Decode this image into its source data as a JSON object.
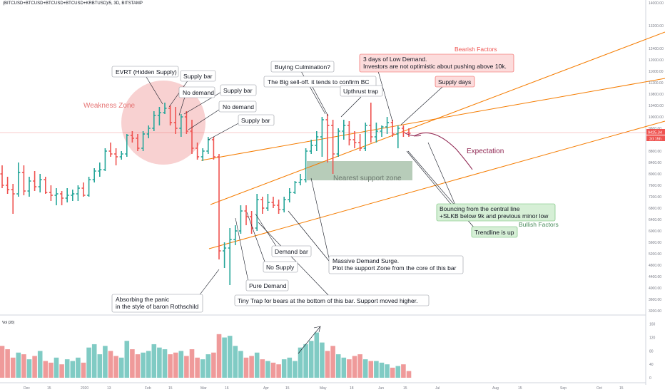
{
  "header": {
    "symbol_title": "(BITCUSD+BTCUSD+BTCUSD+BTCUSD+KRBTUSD)/5, 3D, BITSTAMP"
  },
  "volume_panel": {
    "label": "Vol (20)"
  },
  "colors": {
    "up": "#26a69a",
    "down": "#ef5350",
    "volume_up": "#80cbc4",
    "volume_down": "#ef9a9a",
    "channel": "#f57c00",
    "weakness_zone": "#ef9a9a",
    "support_zone": "#a5bfa8"
  },
  "price_axis": {
    "labels": [
      "14000.00",
      "13200.00",
      "12400.00",
      "12000.00",
      "11600.00",
      "11200.00",
      "10800.00",
      "10400.00",
      "10000.00",
      "9600.00",
      "8800.00",
      "8400.00",
      "8000.00",
      "7600.00",
      "7200.00",
      "6800.00",
      "6400.00",
      "6000.00",
      "5600.00",
      "5200.00",
      "4800.00",
      "4400.00",
      "4000.00",
      "3600.00",
      "3200.00"
    ],
    "last_price": "9425.34",
    "countdown": "2d 15h"
  },
  "volume_axis": {
    "labels": [
      "160",
      "120",
      "80",
      "40",
      "0"
    ]
  },
  "time_axis": {
    "labels": [
      "Dec",
      "15",
      "2020",
      "13",
      "Feb",
      "15",
      "Mar",
      "16",
      "Apr",
      "15",
      "May",
      "18",
      "Jun",
      "15",
      "Jul",
      "Aug",
      "15",
      "Sep",
      "Oct",
      "15"
    ]
  },
  "zones": {
    "weakness": "Weakness Zone",
    "support": "Nearest support zone"
  },
  "annotations": {
    "evrt": "EVRT (Hidden Supply)",
    "supply_bar_1": "Supply bar",
    "no_demand_1": "No demand",
    "supply_bar_2": "Supply bar",
    "no_demand_2": "No demand",
    "supply_bar_3": "Supply bar",
    "buying_climax": "Buying Culmination?",
    "big_selloff": "The Big sell-off. it tends to confirm BC",
    "upthrust": "Upthrust trap",
    "low_demand_1": "3 days of Low Demand.",
    "low_demand_2": "Investors are not optimistic about pushing above 10k.",
    "supply_days": "Supply days",
    "bearish_factors": "Bearish Factors",
    "expectation": "Expectation",
    "bouncing_1": "Bouncing from the central line",
    "bouncing_2": "+SLKB below 9k and previous minor low",
    "trendline_up": "Trendline is up",
    "bullish_factors": "Bullish Factors",
    "demand_bar": "Demand bar",
    "no_supply": "No Supply",
    "pure_demand": "Pure Demand",
    "massive_1": "Massive Demand Surge.",
    "massive_2": "Plot the support Zone from the core of this bar",
    "absorbing_1": "Absorbing the panic",
    "absorbing_2": "in the style of baron Rothschild",
    "tiny_trap": "Tiny Trap for bears at the bottom of this bar. Support moved higher."
  },
  "chart_data": {
    "type": "ohlc",
    "timeframe": "3D",
    "y_scale": "linear",
    "ylim": [
      3200,
      14000
    ],
    "last_price": 9425.34,
    "bars": [
      {
        "o": 8000,
        "h": 8300,
        "l": 7500,
        "c": 7600
      },
      {
        "o": 7600,
        "h": 7900,
        "l": 7300,
        "c": 7450
      },
      {
        "o": 7450,
        "h": 7650,
        "l": 6600,
        "c": 7300
      },
      {
        "o": 7300,
        "h": 8400,
        "l": 7200,
        "c": 8050
      },
      {
        "o": 8050,
        "h": 8300,
        "l": 7250,
        "c": 7400
      },
      {
        "o": 7400,
        "h": 7900,
        "l": 7200,
        "c": 7750
      },
      {
        "o": 7750,
        "h": 8100,
        "l": 7400,
        "c": 7550
      },
      {
        "o": 7550,
        "h": 8000,
        "l": 7350,
        "c": 7800
      },
      {
        "o": 7800,
        "h": 7900,
        "l": 7300,
        "c": 7350
      },
      {
        "o": 7350,
        "h": 7600,
        "l": 7050,
        "c": 7250
      },
      {
        "o": 7250,
        "h": 7500,
        "l": 6900,
        "c": 7300
      },
      {
        "o": 7300,
        "h": 7400,
        "l": 6900,
        "c": 7150
      },
      {
        "o": 7150,
        "h": 7500,
        "l": 7000,
        "c": 7250
      },
      {
        "o": 7250,
        "h": 7450,
        "l": 7050,
        "c": 7300
      },
      {
        "o": 7300,
        "h": 7600,
        "l": 7050,
        "c": 7500
      },
      {
        "o": 7500,
        "h": 7700,
        "l": 7200,
        "c": 7250
      },
      {
        "o": 7250,
        "h": 7900,
        "l": 7200,
        "c": 7800
      },
      {
        "o": 7800,
        "h": 8200,
        "l": 7700,
        "c": 8100
      },
      {
        "o": 8100,
        "h": 8400,
        "l": 7900,
        "c": 8150
      },
      {
        "o": 8150,
        "h": 8900,
        "l": 8100,
        "c": 8800
      },
      {
        "o": 8800,
        "h": 9100,
        "l": 8600,
        "c": 8700
      },
      {
        "o": 8700,
        "h": 8900,
        "l": 8300,
        "c": 8600
      },
      {
        "o": 8600,
        "h": 8800,
        "l": 8500,
        "c": 8700
      },
      {
        "o": 8700,
        "h": 9400,
        "l": 8600,
        "c": 9350
      },
      {
        "o": 9350,
        "h": 9500,
        "l": 9100,
        "c": 9250
      },
      {
        "o": 9250,
        "h": 9400,
        "l": 8800,
        "c": 8900
      },
      {
        "o": 8900,
        "h": 9500,
        "l": 8800,
        "c": 9400
      },
      {
        "o": 9400,
        "h": 9700,
        "l": 9250,
        "c": 9600
      },
      {
        "o": 9600,
        "h": 10200,
        "l": 9500,
        "c": 10050
      },
      {
        "o": 10050,
        "h": 10350,
        "l": 9700,
        "c": 10150
      },
      {
        "o": 10150,
        "h": 10500,
        "l": 10100,
        "c": 10300
      },
      {
        "o": 10300,
        "h": 10400,
        "l": 9700,
        "c": 9800
      },
      {
        "o": 9800,
        "h": 10350,
        "l": 9400,
        "c": 9600
      },
      {
        "o": 9600,
        "h": 10100,
        "l": 9300,
        "c": 10000
      },
      {
        "o": 10000,
        "h": 10200,
        "l": 9400,
        "c": 9500
      },
      {
        "o": 9500,
        "h": 9900,
        "l": 8700,
        "c": 8900
      },
      {
        "o": 8900,
        "h": 9100,
        "l": 8500,
        "c": 8600
      },
      {
        "o": 8600,
        "h": 8900,
        "l": 8450,
        "c": 8800
      },
      {
        "o": 8800,
        "h": 9300,
        "l": 8700,
        "c": 9200
      },
      {
        "o": 9200,
        "h": 9300,
        "l": 8500,
        "c": 8600
      },
      {
        "o": 8600,
        "h": 8700,
        "l": 5000,
        "c": 5300
      },
      {
        "o": 5300,
        "h": 5600,
        "l": 4700,
        "c": 5400
      },
      {
        "o": 5400,
        "h": 6100,
        "l": 4100,
        "c": 5700
      },
      {
        "o": 5700,
        "h": 6200,
        "l": 5500,
        "c": 6000
      },
      {
        "o": 6000,
        "h": 6900,
        "l": 5900,
        "c": 6700
      },
      {
        "o": 6700,
        "h": 6900,
        "l": 6200,
        "c": 6500
      },
      {
        "o": 6500,
        "h": 6700,
        "l": 5900,
        "c": 6100
      },
      {
        "o": 6100,
        "h": 7300,
        "l": 6000,
        "c": 7100
      },
      {
        "o": 7100,
        "h": 7200,
        "l": 6600,
        "c": 6800
      },
      {
        "o": 6800,
        "h": 7300,
        "l": 6700,
        "c": 7000
      },
      {
        "o": 7000,
        "h": 7200,
        "l": 6800,
        "c": 6900
      },
      {
        "o": 6900,
        "h": 7100,
        "l": 6600,
        "c": 6750
      },
      {
        "o": 6750,
        "h": 7200,
        "l": 6650,
        "c": 7100
      },
      {
        "o": 7100,
        "h": 7500,
        "l": 7000,
        "c": 7350
      },
      {
        "o": 7350,
        "h": 7750,
        "l": 7300,
        "c": 7700
      },
      {
        "o": 7700,
        "h": 8000,
        "l": 7600,
        "c": 7800
      },
      {
        "o": 7800,
        "h": 8900,
        "l": 7700,
        "c": 8800
      },
      {
        "o": 8800,
        "h": 9200,
        "l": 8700,
        "c": 9000
      },
      {
        "o": 9000,
        "h": 9500,
        "l": 8800,
        "c": 9300
      },
      {
        "o": 9300,
        "h": 10000,
        "l": 8600,
        "c": 9900
      },
      {
        "o": 9900,
        "h": 10100,
        "l": 8400,
        "c": 9700
      },
      {
        "o": 9700,
        "h": 9900,
        "l": 8000,
        "c": 8700
      },
      {
        "o": 8700,
        "h": 9600,
        "l": 8600,
        "c": 9500
      },
      {
        "o": 9500,
        "h": 9900,
        "l": 9200,
        "c": 9700
      },
      {
        "o": 9700,
        "h": 9850,
        "l": 9000,
        "c": 9200
      },
      {
        "o": 9200,
        "h": 9500,
        "l": 8900,
        "c": 9100
      },
      {
        "o": 9100,
        "h": 9400,
        "l": 8800,
        "c": 8900
      },
      {
        "o": 8900,
        "h": 9800,
        "l": 8800,
        "c": 9700
      },
      {
        "o": 9700,
        "h": 10500,
        "l": 9100,
        "c": 9300
      },
      {
        "o": 9300,
        "h": 9800,
        "l": 9100,
        "c": 9500
      },
      {
        "o": 9500,
        "h": 9700,
        "l": 9300,
        "c": 9650
      },
      {
        "o": 9650,
        "h": 10000,
        "l": 9400,
        "c": 9800
      },
      {
        "o": 9800,
        "h": 9900,
        "l": 9300,
        "c": 9400
      },
      {
        "o": 9400,
        "h": 9700,
        "l": 8900,
        "c": 9600
      },
      {
        "o": 9600,
        "h": 9700,
        "l": 9300,
        "c": 9450
      },
      {
        "o": 9450,
        "h": 9600,
        "l": 9300,
        "c": 9425
      }
    ],
    "volume": [
      95,
      85,
      60,
      75,
      70,
      55,
      65,
      80,
      50,
      45,
      60,
      40,
      55,
      50,
      60,
      45,
      90,
      100,
      70,
      95,
      80,
      65,
      60,
      110,
      85,
      70,
      75,
      80,
      100,
      90,
      85,
      70,
      75,
      80,
      65,
      85,
      60,
      55,
      70,
      75,
      130,
      120,
      125,
      95,
      80,
      60,
      65,
      75,
      55,
      50,
      45,
      40,
      55,
      60,
      50,
      90,
      100,
      110,
      135,
      105,
      80,
      95,
      70,
      60,
      55,
      65,
      70,
      55,
      50,
      50,
      45,
      40,
      30,
      35,
      40,
      20
    ]
  }
}
